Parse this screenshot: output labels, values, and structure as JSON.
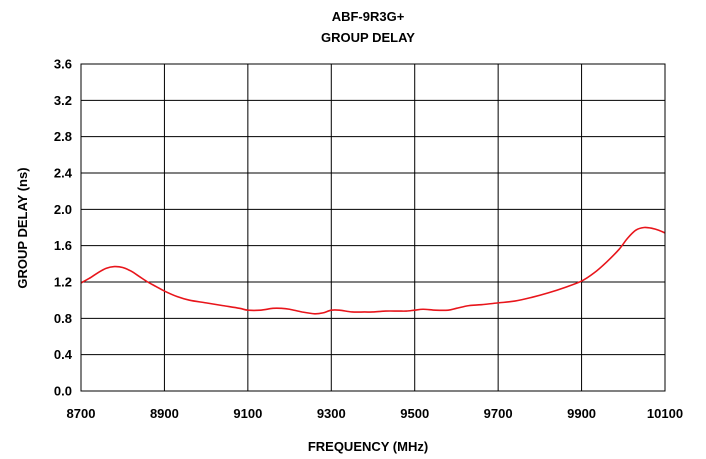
{
  "chart_data": {
    "type": "line",
    "title": "ABF-9R3G+",
    "subtitle": "GROUP DELAY",
    "xlabel": "FREQUENCY (MHz)",
    "ylabel": "GROUP DELAY (ns)",
    "xlim": [
      8700,
      10100
    ],
    "ylim": [
      0.0,
      3.6
    ],
    "x_ticks": [
      8700,
      8900,
      9100,
      9300,
      9500,
      9700,
      9900,
      10100
    ],
    "y_ticks": [
      0.0,
      0.4,
      0.8,
      1.2,
      1.6,
      2.0,
      2.4,
      2.8,
      3.2,
      3.6
    ],
    "x_tick_labels": [
      "8700",
      "8900",
      "9100",
      "9300",
      "9500",
      "9700",
      "9900",
      "10100"
    ],
    "y_tick_labels": [
      "0.0",
      "0.4",
      "0.8",
      "1.2",
      "1.6",
      "2.0",
      "2.4",
      "2.8",
      "3.2",
      "3.6"
    ],
    "grid": true,
    "series": [
      {
        "color": "#e8151b",
        "x": [
          8700,
          8720,
          8740,
          8760,
          8780,
          8800,
          8820,
          8840,
          8860,
          8880,
          8900,
          8930,
          8960,
          9000,
          9040,
          9080,
          9100,
          9130,
          9160,
          9180,
          9200,
          9230,
          9260,
          9280,
          9300,
          9320,
          9350,
          9380,
          9400,
          9430,
          9460,
          9480,
          9500,
          9520,
          9550,
          9580,
          9600,
          9630,
          9660,
          9700,
          9740,
          9780,
          9820,
          9860,
          9900,
          9930,
          9960,
          9990,
          10010,
          10030,
          10050,
          10070,
          10085,
          10100
        ],
        "y": [
          1.19,
          1.24,
          1.3,
          1.35,
          1.37,
          1.36,
          1.32,
          1.26,
          1.2,
          1.15,
          1.1,
          1.04,
          1.0,
          0.97,
          0.94,
          0.91,
          0.89,
          0.89,
          0.91,
          0.91,
          0.9,
          0.87,
          0.85,
          0.86,
          0.89,
          0.89,
          0.87,
          0.87,
          0.87,
          0.88,
          0.88,
          0.88,
          0.89,
          0.9,
          0.89,
          0.89,
          0.91,
          0.94,
          0.95,
          0.97,
          0.99,
          1.03,
          1.08,
          1.14,
          1.21,
          1.3,
          1.42,
          1.56,
          1.68,
          1.77,
          1.8,
          1.79,
          1.77,
          1.74
        ]
      }
    ]
  }
}
